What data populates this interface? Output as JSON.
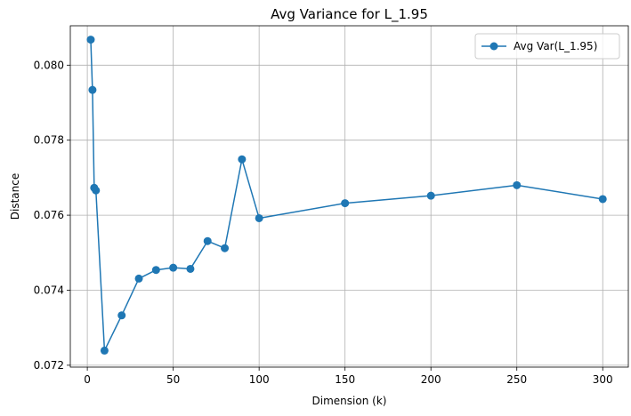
{
  "chart_data": {
    "type": "line",
    "title": "Avg Variance for L_1.95",
    "xlabel": "Dimension (k)",
    "ylabel": "Distance",
    "xlim": [
      -9.9,
      314.9
    ],
    "ylim": [
      0.07195,
      0.08105
    ],
    "xticks": [
      0,
      50,
      100,
      150,
      200,
      250,
      300
    ],
    "xtick_labels": [
      "0",
      "50",
      "100",
      "150",
      "200",
      "250",
      "300"
    ],
    "yticks": [
      0.072,
      0.074,
      0.076,
      0.078,
      0.08
    ],
    "ytick_labels": [
      "0.072",
      "0.074",
      "0.076",
      "0.078",
      "0.080"
    ],
    "grid": true,
    "legend_position": "upper right",
    "series": [
      {
        "name": "Avg Var(L_1.95)",
        "color": "#1f77b4",
        "marker": "circle",
        "x": [
          2,
          3,
          4,
          5,
          10,
          20,
          30,
          40,
          50,
          60,
          70,
          80,
          90,
          100,
          150,
          200,
          250,
          300
        ],
        "y": [
          0.08068,
          0.07934,
          0.07673,
          0.07666,
          0.07239,
          0.07333,
          0.07431,
          0.07454,
          0.0746,
          0.07457,
          0.07531,
          0.07512,
          0.07749,
          0.07592,
          0.07632,
          0.07652,
          0.0768,
          0.07643
        ]
      }
    ]
  }
}
